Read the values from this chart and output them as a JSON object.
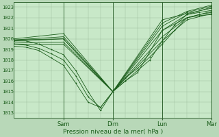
{
  "xlabel": "Pression niveau de la mer( hPa )",
  "bg_color": "#b8d8b8",
  "plot_bg_color": "#c8e8c8",
  "grid_color": "#99bb99",
  "line_color": "#1a5c1a",
  "day_line_color": "#336633",
  "xlim": [
    0,
    96
  ],
  "ylim": [
    1012.5,
    1023.5
  ],
  "yticks": [
    1013,
    1014,
    1015,
    1016,
    1017,
    1018,
    1019,
    1020,
    1021,
    1022,
    1023
  ],
  "day_ticks": [
    24,
    48,
    72,
    96
  ],
  "day_labels": [
    "Sam",
    "Dim",
    "Lun",
    "Mar"
  ],
  "series": [
    [
      0,
      1019.8,
      6,
      1019.8,
      12,
      1019.5,
      18,
      1019.0,
      24,
      1018.5,
      30,
      1017.0,
      36,
      1015.0,
      42,
      1013.2,
      48,
      1015.0,
      54,
      1016.3,
      60,
      1017.2,
      66,
      1018.3,
      72,
      1019.5,
      78,
      1020.8,
      84,
      1022.0,
      90,
      1022.3,
      96,
      1022.5
    ],
    [
      0,
      1019.5,
      6,
      1019.4,
      12,
      1019.1,
      18,
      1018.6,
      24,
      1018.0,
      30,
      1016.5,
      36,
      1014.5,
      42,
      1013.5,
      48,
      1015.0,
      54,
      1016.0,
      60,
      1017.0,
      66,
      1018.0,
      72,
      1019.8,
      78,
      1021.3,
      84,
      1022.3,
      90,
      1022.5,
      96,
      1022.7
    ],
    [
      0,
      1019.3,
      6,
      1019.2,
      12,
      1018.9,
      18,
      1018.2,
      24,
      1017.5,
      30,
      1015.8,
      36,
      1014.0,
      42,
      1013.5,
      48,
      1015.0,
      54,
      1016.0,
      60,
      1016.8,
      72,
      1020.8,
      84,
      1022.0,
      90,
      1022.2,
      96,
      1022.3
    ],
    [
      0,
      1019.5,
      24,
      1019.5,
      48,
      1015.0,
      72,
      1019.8,
      84,
      1021.8,
      96,
      1022.4
    ],
    [
      0,
      1019.6,
      24,
      1019.7,
      48,
      1015.0,
      72,
      1020.2,
      84,
      1022.0,
      96,
      1022.6
    ],
    [
      0,
      1019.8,
      24,
      1020.0,
      48,
      1015.0,
      72,
      1020.8,
      84,
      1022.3,
      96,
      1023.0
    ],
    [
      0,
      1019.9,
      24,
      1020.2,
      48,
      1015.0,
      72,
      1021.2,
      84,
      1022.5,
      96,
      1023.1
    ],
    [
      0,
      1020.0,
      24,
      1020.5,
      48,
      1015.0,
      72,
      1021.5,
      84,
      1022.6,
      96,
      1023.2
    ],
    [
      0,
      1019.9,
      24,
      1020.0,
      48,
      1015.0,
      72,
      1021.8,
      84,
      1022.4,
      96,
      1022.9
    ]
  ],
  "marker": "+",
  "markersize": 2.0,
  "linewidth": 0.6
}
